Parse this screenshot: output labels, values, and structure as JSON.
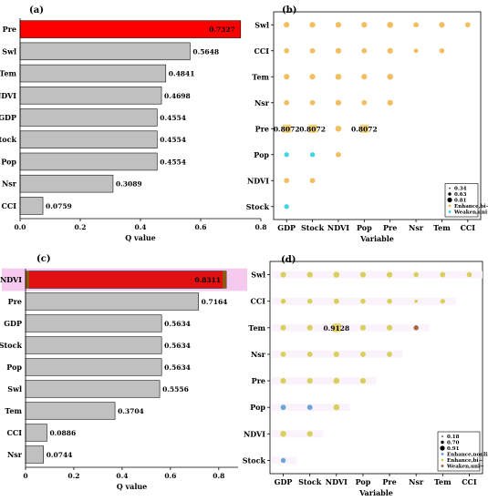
{
  "chart_data": [
    {
      "panel": "(a)",
      "type": "bar",
      "orientation": "horizontal",
      "categories": [
        "Pre",
        "Swl",
        "Tem",
        "NDVI",
        "GDP",
        "Stock",
        "Pop",
        "Nsr",
        "CCI"
      ],
      "values": [
        0.7327,
        0.5648,
        0.4841,
        0.4698,
        0.4554,
        0.4554,
        0.4554,
        0.3089,
        0.0759
      ],
      "value_labels": [
        "0.7327",
        "0.5648",
        "0.4841",
        "0.4698",
        "0.4554",
        "0.4554",
        "0.4554",
        "0.3089",
        "0.0759"
      ],
      "highlight_index": 0,
      "xlabel": "Q value",
      "xlim": [
        0,
        0.8
      ],
      "xticks": [
        "0.0",
        "0.2",
        "0.4",
        "0.6",
        "0.8"
      ],
      "colors": {
        "bar": "#c0c0c0",
        "highlight": "#ff0000"
      }
    },
    {
      "panel": "(b)",
      "type": "scatter",
      "xcategories": [
        "GDP",
        "Stock",
        "NDVI",
        "Pop",
        "Pre",
        "Nsr",
        "Tem",
        "CCI"
      ],
      "ycategories": [
        "Swl",
        "CCI",
        "Tem",
        "Nsr",
        "Pre",
        "Pop",
        "NDVI",
        "Stock"
      ],
      "xlabel": "Variable",
      "points": [
        {
          "x": "GDP",
          "y": "Swl",
          "v": 0.5,
          "k": "bi"
        },
        {
          "x": "Stock",
          "y": "Swl",
          "v": 0.5,
          "k": "bi"
        },
        {
          "x": "NDVI",
          "y": "Swl",
          "v": 0.5,
          "k": "bi"
        },
        {
          "x": "Pop",
          "y": "Swl",
          "v": 0.5,
          "k": "bi"
        },
        {
          "x": "Pre",
          "y": "Swl",
          "v": 0.55,
          "k": "bi"
        },
        {
          "x": "Nsr",
          "y": "Swl",
          "v": 0.45,
          "k": "bi"
        },
        {
          "x": "Tem",
          "y": "Swl",
          "v": 0.5,
          "k": "bi"
        },
        {
          "x": "CCI",
          "y": "Swl",
          "v": 0.45,
          "k": "bi"
        },
        {
          "x": "GDP",
          "y": "CCI",
          "v": 0.45,
          "k": "bi"
        },
        {
          "x": "Stock",
          "y": "CCI",
          "v": 0.45,
          "k": "bi"
        },
        {
          "x": "NDVI",
          "y": "CCI",
          "v": 0.5,
          "k": "bi"
        },
        {
          "x": "Pop",
          "y": "CCI",
          "v": 0.45,
          "k": "bi"
        },
        {
          "x": "Pre",
          "y": "CCI",
          "v": 0.5,
          "k": "bi"
        },
        {
          "x": "Nsr",
          "y": "CCI",
          "v": 0.36,
          "k": "bi"
        },
        {
          "x": "Tem",
          "y": "CCI",
          "v": 0.42,
          "k": "bi"
        },
        {
          "x": "GDP",
          "y": "Tem",
          "v": 0.5,
          "k": "bi"
        },
        {
          "x": "Stock",
          "y": "Tem",
          "v": 0.5,
          "k": "bi"
        },
        {
          "x": "NDVI",
          "y": "Tem",
          "v": 0.55,
          "k": "bi"
        },
        {
          "x": "Pop",
          "y": "Tem",
          "v": 0.5,
          "k": "bi"
        },
        {
          "x": "Pre",
          "y": "Tem",
          "v": 0.55,
          "k": "bi"
        },
        {
          "x": "GDP",
          "y": "Nsr",
          "v": 0.45,
          "k": "bi"
        },
        {
          "x": "Stock",
          "y": "Nsr",
          "v": 0.45,
          "k": "bi"
        },
        {
          "x": "NDVI",
          "y": "Nsr",
          "v": 0.5,
          "k": "bi"
        },
        {
          "x": "Pop",
          "y": "Nsr",
          "v": 0.45,
          "k": "bi"
        },
        {
          "x": "Pre",
          "y": "Nsr",
          "v": 0.5,
          "k": "bi"
        },
        {
          "x": "GDP",
          "y": "Pre",
          "v": 0.8072,
          "k": "bi"
        },
        {
          "x": "Stock",
          "y": "Pre",
          "v": 0.8072,
          "k": "bi"
        },
        {
          "x": "NDVI",
          "y": "Pre",
          "v": 0.55,
          "k": "bi"
        },
        {
          "x": "Pop",
          "y": "Pre",
          "v": 0.8072,
          "k": "bi"
        },
        {
          "x": "GDP",
          "y": "Pop",
          "v": 0.4,
          "k": "nl"
        },
        {
          "x": "Stock",
          "y": "Pop",
          "v": 0.4,
          "k": "nl"
        },
        {
          "x": "NDVI",
          "y": "Pop",
          "v": 0.45,
          "k": "bi"
        },
        {
          "x": "GDP",
          "y": "NDVI",
          "v": 0.45,
          "k": "bi"
        },
        {
          "x": "Stock",
          "y": "NDVI",
          "v": 0.45,
          "k": "bi"
        },
        {
          "x": "GDP",
          "y": "Stock",
          "v": 0.4,
          "k": "nl"
        }
      ],
      "annotations": [
        {
          "x": "GDP",
          "y": "Pre",
          "text": "0.8072"
        },
        {
          "x": "Stock",
          "y": "Pre",
          "text": "0.8072"
        },
        {
          "x": "Pop",
          "y": "Pre",
          "text": "0.8072"
        }
      ],
      "legend": {
        "placement": "bottom-right",
        "sizes": [
          "0.34",
          "0.63",
          "0.81"
        ],
        "types": [
          {
            "label": "Enhance,bi−",
            "color": "#f0b850"
          },
          {
            "label": "Weaken,uni−",
            "color": "#30d0e0"
          }
        ]
      },
      "colors": {
        "bi": "#f0b850",
        "nl": "#30d0e0",
        "label_bg": "#f4d27a"
      }
    },
    {
      "panel": "(c)",
      "type": "bar",
      "orientation": "horizontal",
      "categories": [
        "NDVI",
        "Pre",
        "GDP",
        "Stock",
        "Pop",
        "Swl",
        "Tem",
        "CCI",
        "Nsr"
      ],
      "values": [
        0.8311,
        0.7164,
        0.5634,
        0.5634,
        0.5634,
        0.5556,
        0.3704,
        0.0886,
        0.0744
      ],
      "value_labels": [
        "0.8311",
        "0.7164",
        "0.5634",
        "0.5634",
        "0.5634",
        "0.5556",
        "0.3704",
        "0.0886",
        "0.0744"
      ],
      "highlight_index": 0,
      "xlabel": "Q value",
      "xlim": [
        0,
        0.88
      ],
      "xticks": [
        "0",
        "0.2",
        "0.4",
        "0.6",
        "0.8"
      ],
      "colors": {
        "bar": "#c0c0c0",
        "highlight": "#e01010",
        "highlight_edge": "#8a5a10",
        "highlight_band": "#f6c9ef"
      }
    },
    {
      "panel": "(d)",
      "type": "scatter",
      "xcategories": [
        "GDP",
        "Stock",
        "NDVI",
        "Pop",
        "Pre",
        "Nsr",
        "Tem",
        "CCI"
      ],
      "ycategories": [
        "Swl",
        "CCI",
        "Tem",
        "Nsr",
        "Pre",
        "Pop",
        "NDVI",
        "Stock"
      ],
      "xlabel": "Variable",
      "points": [
        {
          "x": "GDP",
          "y": "Swl",
          "v": 0.5,
          "k": "bi"
        },
        {
          "x": "Stock",
          "y": "Swl",
          "v": 0.5,
          "k": "bi"
        },
        {
          "x": "NDVI",
          "y": "Swl",
          "v": 0.55,
          "k": "bi"
        },
        {
          "x": "Pop",
          "y": "Swl",
          "v": 0.5,
          "k": "bi"
        },
        {
          "x": "Pre",
          "y": "Swl",
          "v": 0.5,
          "k": "bi"
        },
        {
          "x": "Nsr",
          "y": "Swl",
          "v": 0.42,
          "k": "bi"
        },
        {
          "x": "Tem",
          "y": "Swl",
          "v": 0.45,
          "k": "bi"
        },
        {
          "x": "CCI",
          "y": "Swl",
          "v": 0.42,
          "k": "bi"
        },
        {
          "x": "GDP",
          "y": "CCI",
          "v": 0.42,
          "k": "bi"
        },
        {
          "x": "Stock",
          "y": "CCI",
          "v": 0.42,
          "k": "bi"
        },
        {
          "x": "NDVI",
          "y": "CCI",
          "v": 0.45,
          "k": "bi"
        },
        {
          "x": "Pop",
          "y": "CCI",
          "v": 0.42,
          "k": "bi"
        },
        {
          "x": "Pre",
          "y": "CCI",
          "v": 0.42,
          "k": "bi"
        },
        {
          "x": "Nsr",
          "y": "CCI",
          "v": 0.2,
          "k": "bi"
        },
        {
          "x": "Tem",
          "y": "CCI",
          "v": 0.38,
          "k": "bi"
        },
        {
          "x": "GDP",
          "y": "Tem",
          "v": 0.5,
          "k": "bi"
        },
        {
          "x": "Stock",
          "y": "Tem",
          "v": 0.5,
          "k": "bi"
        },
        {
          "x": "NDVI",
          "y": "Tem",
          "v": 0.9128,
          "k": "bi"
        },
        {
          "x": "Pop",
          "y": "Tem",
          "v": 0.5,
          "k": "bi"
        },
        {
          "x": "Pre",
          "y": "Tem",
          "v": 0.5,
          "k": "bi"
        },
        {
          "x": "Nsr",
          "y": "Tem",
          "v": 0.4,
          "k": "uni"
        },
        {
          "x": "GDP",
          "y": "Nsr",
          "v": 0.45,
          "k": "bi"
        },
        {
          "x": "Stock",
          "y": "Nsr",
          "v": 0.45,
          "k": "bi"
        },
        {
          "x": "NDVI",
          "y": "Nsr",
          "v": 0.5,
          "k": "bi"
        },
        {
          "x": "Pop",
          "y": "Nsr",
          "v": 0.45,
          "k": "bi"
        },
        {
          "x": "Pre",
          "y": "Nsr",
          "v": 0.45,
          "k": "bi"
        },
        {
          "x": "GDP",
          "y": "Pre",
          "v": 0.5,
          "k": "bi"
        },
        {
          "x": "Stock",
          "y": "Pre",
          "v": 0.5,
          "k": "bi"
        },
        {
          "x": "NDVI",
          "y": "Pre",
          "v": 0.55,
          "k": "bi"
        },
        {
          "x": "Pop",
          "y": "Pre",
          "v": 0.5,
          "k": "bi"
        },
        {
          "x": "GDP",
          "y": "Pop",
          "v": 0.45,
          "k": "nl"
        },
        {
          "x": "Stock",
          "y": "Pop",
          "v": 0.45,
          "k": "nl"
        },
        {
          "x": "NDVI",
          "y": "Pop",
          "v": 0.55,
          "k": "bi"
        },
        {
          "x": "GDP",
          "y": "NDVI",
          "v": 0.55,
          "k": "bi"
        },
        {
          "x": "Stock",
          "y": "NDVI",
          "v": 0.5,
          "k": "bi"
        },
        {
          "x": "GDP",
          "y": "Stock",
          "v": 0.4,
          "k": "nl"
        }
      ],
      "annotations": [
        {
          "x": "NDVI",
          "y": "Tem",
          "text": "0.9128"
        }
      ],
      "legend": {
        "placement": "bottom-right",
        "sizes": [
          "0.18",
          "0.70",
          "0.91"
        ],
        "types": [
          {
            "label": "Enhance,nonlinear",
            "color": "#5b9bd5"
          },
          {
            "label": "Enhance,bi−",
            "color": "#d4cc4a"
          },
          {
            "label": "Weaken,uni−",
            "color": "#a0522d"
          }
        ]
      },
      "colors": {
        "bi": "#d4cc4a",
        "nl": "#5b9bd5",
        "uni": "#a0522d",
        "label_bg": "#e8d36a",
        "row_band": "#fbf3fb"
      }
    }
  ]
}
